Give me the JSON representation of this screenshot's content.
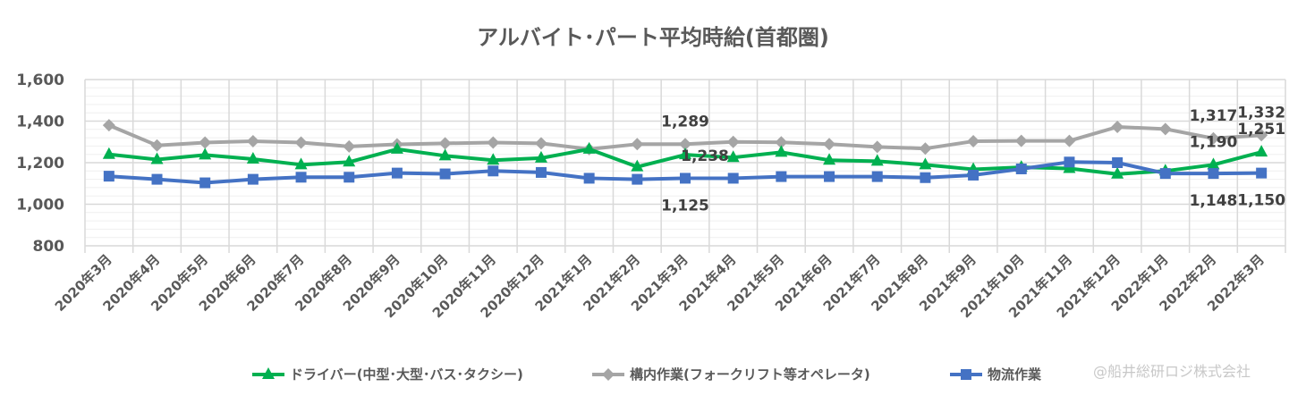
{
  "chart_data": {
    "type": "line",
    "title": "アルバイト･パート平均時給(首都圏)",
    "xlabel": "",
    "ylabel": "",
    "ylim": [
      800,
      1600
    ],
    "yticks": [
      "800",
      "1,000",
      "1,200",
      "1,400",
      "1,600"
    ],
    "ytick_values": [
      800,
      1000,
      1200,
      1400,
      1600
    ],
    "grid": true,
    "legend_position": "bottom",
    "categories": [
      "2020年3月",
      "2020年4月",
      "2020年5月",
      "2020年6月",
      "2020年7月",
      "2020年8月",
      "2020年9月",
      "2020年10月",
      "2020年11月",
      "2020年12月",
      "2021年1月",
      "2021年2月",
      "2021年3月",
      "2021年4月",
      "2021年5月",
      "2021年6月",
      "2021年7月",
      "2021年8月",
      "2021年9月",
      "2021年10月",
      "2021年11月",
      "2021年12月",
      "2022年1月",
      "2022年2月",
      "2022年3月"
    ],
    "series": [
      {
        "name": "ドライバー(中型･大型･バス･タクシー)",
        "color": "#00b050",
        "marker": "triangle",
        "values": [
          1240,
          1215,
          1237,
          1217,
          1190,
          1203,
          1265,
          1233,
          1212,
          1222,
          1265,
          1180,
          1238,
          1225,
          1250,
          1212,
          1207,
          1190,
          1168,
          1178,
          1172,
          1145,
          1160,
          1190,
          1251
        ]
      },
      {
        "name": "構内作業(フォークリフト等オペレータ)",
        "color": "#a5a5a5",
        "marker": "diamond",
        "values": [
          1380,
          1283,
          1297,
          1303,
          1297,
          1278,
          1288,
          1293,
          1297,
          1293,
          1265,
          1289,
          1289,
          1300,
          1298,
          1289,
          1276,
          1268,
          1303,
          1305,
          1305,
          1372,
          1362,
          1317,
          1332
        ]
      },
      {
        "name": "物流作業",
        "color": "#4472c4",
        "marker": "square",
        "values": [
          1135,
          1120,
          1103,
          1120,
          1130,
          1130,
          1150,
          1146,
          1160,
          1153,
          1125,
          1120,
          1125,
          1125,
          1133,
          1133,
          1133,
          1128,
          1140,
          1170,
          1203,
          1200,
          1148,
          1148,
          1150
        ]
      }
    ],
    "data_labels": [
      {
        "series": 1,
        "index": 12,
        "text": "1,289",
        "pos": "above"
      },
      {
        "series": 0,
        "index": 12,
        "text": "1,238",
        "pos": "right"
      },
      {
        "series": 2,
        "index": 12,
        "text": "1,125",
        "pos": "below"
      },
      {
        "series": 1,
        "index": 23,
        "text": "1,317",
        "pos": "above"
      },
      {
        "series": 0,
        "index": 23,
        "text": "1,190",
        "pos": "above"
      },
      {
        "series": 2,
        "index": 23,
        "text": "1,148",
        "pos": "below"
      },
      {
        "series": 1,
        "index": 24,
        "text": "1,332",
        "pos": "above"
      },
      {
        "series": 0,
        "index": 24,
        "text": "1,251",
        "pos": "above"
      },
      {
        "series": 2,
        "index": 24,
        "text": "1,150",
        "pos": "below"
      }
    ]
  },
  "watermark": "@船井総研ロジ株式会社"
}
